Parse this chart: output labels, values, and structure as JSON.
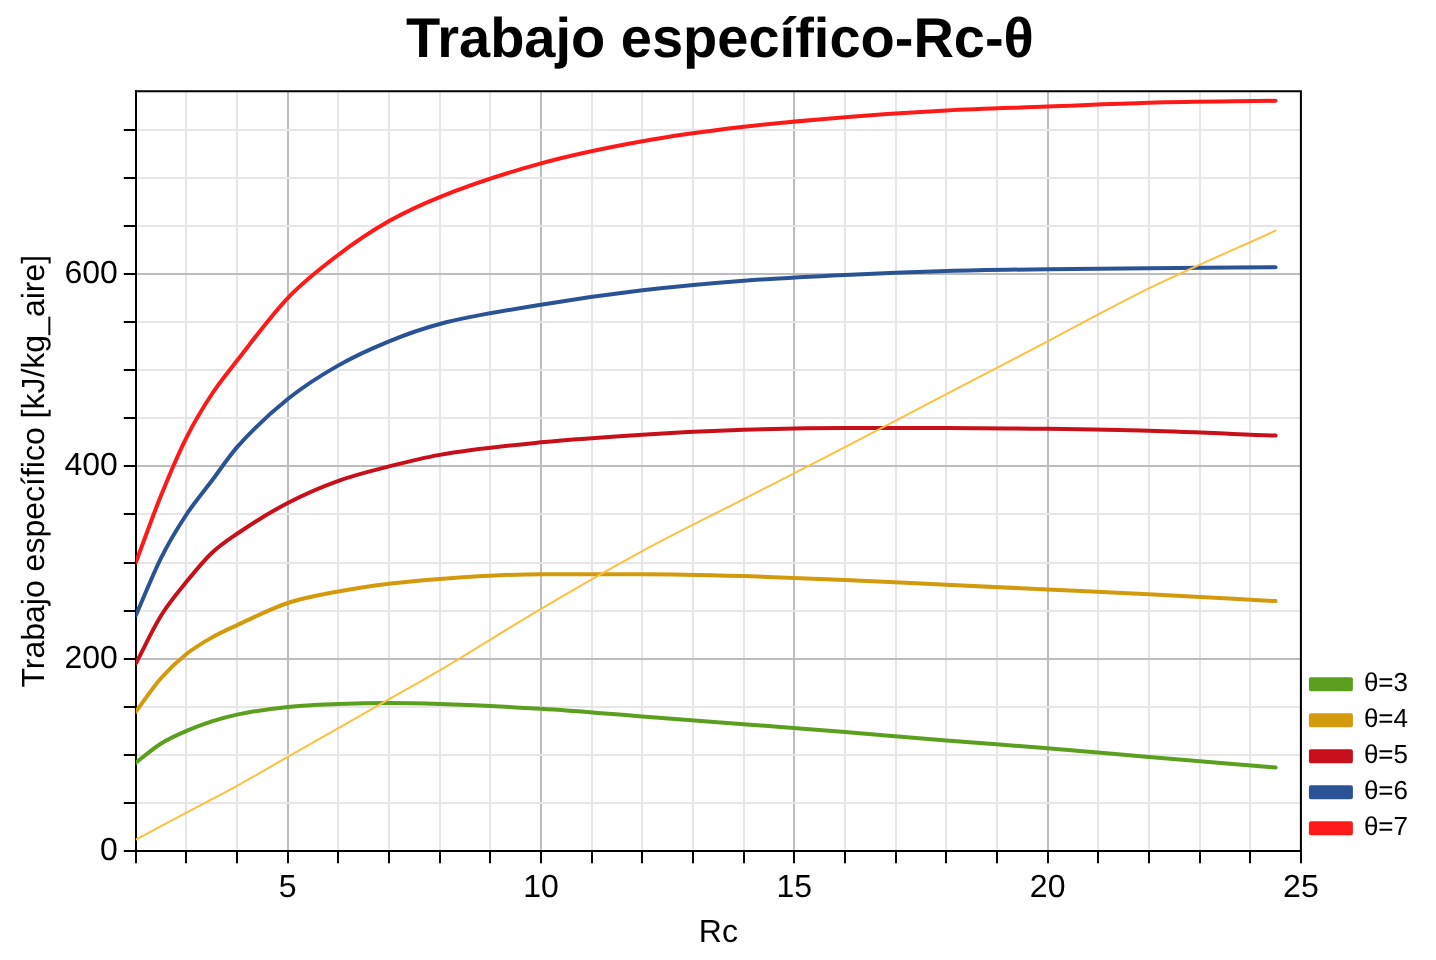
{
  "chart_data": {
    "type": "line",
    "title": "Trabajo específico-Rc-θ",
    "xlabel": "Rc",
    "ylabel": "Trabajo específico [kJ/kg_aire]",
    "x": [
      2,
      2.5,
      3,
      3.5,
      4,
      5,
      6,
      7,
      8,
      10,
      12,
      14,
      16,
      18,
      20,
      22,
      24.5
    ],
    "series": [
      {
        "name": "θ=3",
        "color": "#5aa01e",
        "values": [
          92,
          112,
          125,
          135,
          142,
          150,
          153,
          154,
          153,
          148,
          140,
          132,
          124,
          115,
          107,
          98,
          87
        ]
      },
      {
        "name": "θ=4",
        "color": "#d49a0e",
        "values": [
          145,
          180,
          205,
          222,
          235,
          258,
          270,
          278,
          283,
          288,
          288,
          286,
          282,
          277,
          272,
          267,
          260
        ]
      },
      {
        "name": "θ=5",
        "color": "#c8101a",
        "values": [
          195,
          245,
          280,
          310,
          330,
          362,
          385,
          400,
          412,
          425,
          433,
          438,
          440,
          440,
          439,
          437,
          432
        ]
      },
      {
        "name": "θ=6",
        "color": "#2a5396",
        "values": [
          245,
          305,
          350,
          385,
          420,
          470,
          505,
          530,
          548,
          568,
          583,
          593,
          599,
          603,
          605,
          606,
          607
        ]
      },
      {
        "name": "θ=7",
        "color": "#ff1a1a",
        "values": [
          300,
          370,
          430,
          475,
          510,
          575,
          620,
          655,
          680,
          715,
          738,
          753,
          763,
          770,
          774,
          778,
          780
        ]
      },
      {
        "color": "#ffc040",
        "values": [
          12,
          26,
          40,
          54,
          68,
          98,
          128,
          158,
          188,
          252,
          312,
          366,
          420,
          475,
          530,
          585,
          645
        ]
      }
    ],
    "xlim": [
      2,
      25
    ],
    "xticks": [
      {
        "value": 2,
        "label": null
      },
      {
        "value": 3,
        "label": null
      },
      {
        "value": 4,
        "label": null
      },
      5,
      {
        "value": 6,
        "label": null
      },
      {
        "value": 7,
        "label": null
      },
      {
        "value": 8,
        "label": null
      },
      {
        "value": 9,
        "label": null
      },
      10,
      {
        "value": 11,
        "label": null
      },
      {
        "value": 12,
        "label": null
      },
      {
        "value": 13,
        "label": null
      },
      {
        "value": 14,
        "label": null
      },
      15,
      {
        "value": 16,
        "label": null
      },
      {
        "value": 17,
        "label": null
      },
      {
        "value": 18,
        "label": null
      },
      {
        "value": 19,
        "label": null
      },
      20,
      {
        "value": 21,
        "label": null
      },
      {
        "value": 22,
        "label": null
      },
      {
        "value": 23,
        "label": null
      },
      {
        "value": 24,
        "label": null
      },
      25
    ],
    "ylim": [
      0,
      790
    ],
    "yticks": [
      0,
      {
        "value": 50,
        "label": null
      },
      {
        "value": 100,
        "label": null
      },
      {
        "value": 150,
        "label": null
      },
      200,
      {
        "value": 250,
        "label": null
      },
      {
        "value": 300,
        "label": null
      },
      {
        "value": 350,
        "label": null
      },
      400,
      {
        "value": 450,
        "label": null
      },
      {
        "value": 500,
        "label": null
      },
      {
        "value": 550,
        "label": null
      },
      600,
      {
        "value": 650,
        "label": null
      },
      {
        "value": 700,
        "label": null
      },
      {
        "value": 750,
        "label": null
      }
    ],
    "grid": true,
    "legend": "bottom right",
    "marker": "none",
    "line_style": "solid"
  }
}
